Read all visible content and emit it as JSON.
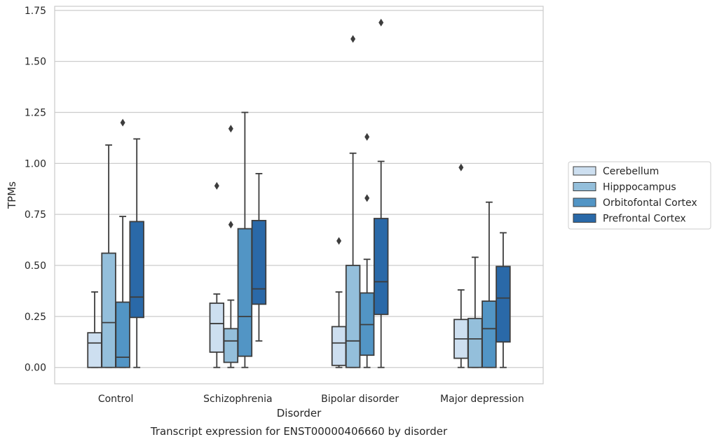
{
  "chart_data": {
    "type": "box",
    "caption": "Transcript expression for ENST00000406660 by disorder",
    "xlabel": "Disorder",
    "ylabel": "TPMs",
    "ylim": [
      -0.08,
      1.77
    ],
    "yticks": [
      0.0,
      0.25,
      0.5,
      0.75,
      1.0,
      1.25,
      1.5,
      1.75
    ],
    "ytick_labels": [
      "0.00",
      "0.25",
      "0.50",
      "0.75",
      "1.00",
      "1.25",
      "1.50",
      "1.75"
    ],
    "categories": [
      "Control",
      "Schizophrenia",
      "Bipolar disorder",
      "Major depression"
    ],
    "grid": true,
    "legend_position": "right",
    "series": [
      {
        "name": "Cerebellum",
        "color": "#cddff0",
        "boxes": [
          {
            "whislo": 0.0,
            "q1": 0.0,
            "med": 0.12,
            "q3": 0.17,
            "whishi": 0.37,
            "fliers": []
          },
          {
            "whislo": 0.0,
            "q1": 0.075,
            "med": 0.215,
            "q3": 0.315,
            "whishi": 0.36,
            "fliers": [
              0.89
            ]
          },
          {
            "whislo": 0.0,
            "q1": 0.01,
            "med": 0.12,
            "q3": 0.2,
            "whishi": 0.37,
            "fliers": [
              0.62
            ]
          },
          {
            "whislo": 0.0,
            "q1": 0.045,
            "med": 0.14,
            "q3": 0.235,
            "whishi": 0.38,
            "fliers": [
              0.98
            ]
          }
        ]
      },
      {
        "name": "Hipppocampus",
        "color": "#94bfdb",
        "boxes": [
          {
            "whislo": 0.0,
            "q1": 0.0,
            "med": 0.22,
            "q3": 0.56,
            "whishi": 1.09,
            "fliers": []
          },
          {
            "whislo": 0.0,
            "q1": 0.025,
            "med": 0.13,
            "q3": 0.19,
            "whishi": 0.33,
            "fliers": [
              0.7,
              1.17
            ]
          },
          {
            "whislo": 0.0,
            "q1": 0.0,
            "med": 0.13,
            "q3": 0.5,
            "whishi": 1.05,
            "fliers": [
              1.61
            ]
          },
          {
            "whislo": 0.0,
            "q1": 0.0,
            "med": 0.14,
            "q3": 0.24,
            "whishi": 0.54,
            "fliers": []
          }
        ]
      },
      {
        "name": "Orbitofontal Cortex",
        "color": "#5295c5",
        "boxes": [
          {
            "whislo": 0.0,
            "q1": 0.0,
            "med": 0.05,
            "q3": 0.32,
            "whishi": 0.74,
            "fliers": [
              1.2
            ]
          },
          {
            "whislo": 0.0,
            "q1": 0.055,
            "med": 0.25,
            "q3": 0.68,
            "whishi": 1.25,
            "fliers": []
          },
          {
            "whislo": 0.0,
            "q1": 0.06,
            "med": 0.21,
            "q3": 0.365,
            "whishi": 0.53,
            "fliers": [
              0.83,
              1.13
            ]
          },
          {
            "whislo": 0.0,
            "q1": 0.0,
            "med": 0.19,
            "q3": 0.325,
            "whishi": 0.81,
            "fliers": []
          }
        ]
      },
      {
        "name": "Prefrontal Cortex",
        "color": "#2a69a8",
        "boxes": [
          {
            "whislo": 0.0,
            "q1": 0.245,
            "med": 0.345,
            "q3": 0.715,
            "whishi": 1.12,
            "fliers": []
          },
          {
            "whislo": 0.13,
            "q1": 0.31,
            "med": 0.385,
            "q3": 0.72,
            "whishi": 0.95,
            "fliers": []
          },
          {
            "whislo": 0.0,
            "q1": 0.26,
            "med": 0.42,
            "q3": 0.73,
            "whishi": 1.01,
            "fliers": [
              1.69
            ]
          },
          {
            "whislo": 0.0,
            "q1": 0.125,
            "med": 0.34,
            "q3": 0.495,
            "whishi": 0.66,
            "fliers": []
          }
        ]
      }
    ]
  }
}
